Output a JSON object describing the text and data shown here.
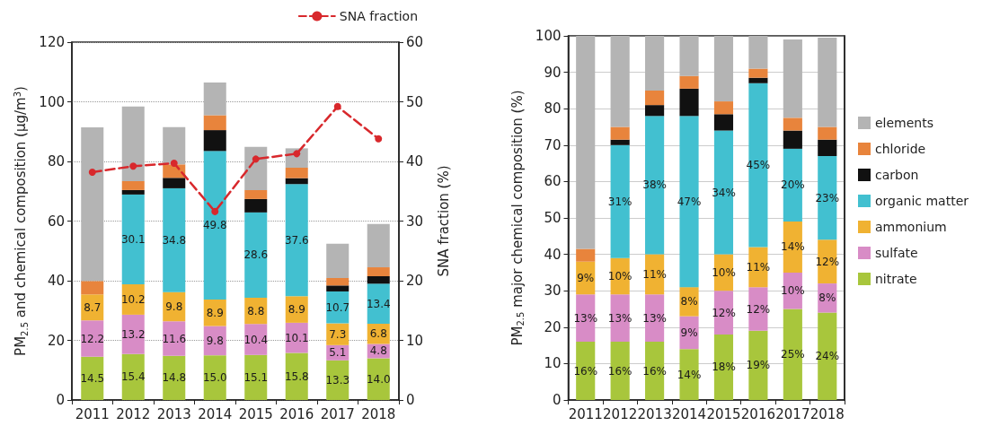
{
  "chart_data": [
    {
      "type": "bar",
      "ylabel": "PM$_{2.5}$ and chemical composition (μg/m$^{3}$)",
      "y2label": "SNA fraction (%)",
      "categories": [
        "2011",
        "2012",
        "2013",
        "2014",
        "2015",
        "2016",
        "2017",
        "2018"
      ],
      "stacked": true,
      "ylim": [
        0,
        120
      ],
      "yticks": [
        0,
        20,
        40,
        60,
        80,
        100,
        120
      ],
      "y2lim": [
        0,
        60
      ],
      "y2ticks": [
        0,
        10,
        20,
        30,
        40,
        50,
        60
      ],
      "grid": "y",
      "legend": "top right",
      "series": [
        {
          "color": "#a8c63c",
          "values": [
            14.5,
            15.4,
            14.8,
            15.0,
            15.1,
            15.8,
            13.3,
            14.0
          ],
          "value_labels": [
            "14.5",
            "15.4",
            "14.8",
            "15.0",
            "15.1",
            "15.8",
            "13.3",
            "14.0"
          ]
        },
        {
          "color": "#d88cc6",
          "values": [
            12.2,
            13.2,
            11.6,
            9.8,
            10.4,
            10.1,
            5.1,
            4.8
          ],
          "value_labels": [
            "12.2",
            "13.2",
            "11.6",
            "9.8",
            "10.4",
            "10.1",
            "5.1",
            "4.8"
          ]
        },
        {
          "color": "#f0b232",
          "values": [
            8.7,
            10.2,
            9.8,
            8.9,
            8.8,
            8.9,
            7.3,
            6.8
          ],
          "value_labels": [
            "8.7",
            "10.2",
            "9.8",
            "8.9",
            "8.8",
            "8.9",
            "7.3",
            "6.8"
          ]
        },
        {
          "color": "#42c0d0",
          "values": [
            null,
            30.1,
            34.8,
            49.8,
            28.6,
            37.6,
            10.7,
            13.4
          ],
          "value_labels": [
            null,
            "30.1",
            "34.8",
            "49.8",
            "28.6",
            "37.6",
            "10.7",
            "13.4"
          ]
        },
        {
          "color": "#111111",
          "values": [
            null,
            1.5,
            3.5,
            7.0,
            4.5,
            2.0,
            2.0,
            2.5
          ]
        },
        {
          "color": "#e8843c",
          "values": [
            4.5,
            3.0,
            4.5,
            5.0,
            3.0,
            3.5,
            2.5,
            3.0
          ]
        },
        {
          "color": "#b4b4b4",
          "values": [
            51.5,
            25.0,
            12.5,
            11.0,
            14.5,
            6.5,
            11.5,
            14.5
          ]
        },
        {
          "name": "SNA fraction",
          "type": "line",
          "axis": "y2",
          "color": "#d8282c",
          "marker": "circle",
          "line_style": "dashed",
          "values": [
            38.2,
            39.2,
            39.7,
            31.6,
            40.4,
            41.3,
            49.2,
            43.8
          ]
        }
      ]
    },
    {
      "type": "bar",
      "ylabel": "PM$_{2.5}$ major chemical composition (%)",
      "categories": [
        "2011",
        "2012",
        "2013",
        "2014",
        "2015",
        "2016",
        "2017",
        "2018"
      ],
      "stacked": true,
      "ylim": [
        0,
        100
      ],
      "yticks": [
        0,
        10,
        20,
        30,
        40,
        50,
        60,
        70,
        80,
        90,
        100
      ],
      "grid": "y",
      "legend": "right",
      "series": [
        {
          "name": "nitrate",
          "color": "#a8c63c",
          "values": [
            16,
            16,
            16,
            14,
            18,
            19,
            25,
            24
          ],
          "value_labels": [
            "16%",
            "16%",
            "16%",
            "14%",
            "18%",
            "19%",
            "25%",
            "24%"
          ]
        },
        {
          "name": "sulfate",
          "color": "#d88cc6",
          "values": [
            13,
            13,
            13,
            9,
            12,
            12,
            10,
            8
          ],
          "value_labels": [
            "13%",
            "13%",
            "13%",
            "9%",
            "12%",
            "12%",
            "10%",
            "8%"
          ]
        },
        {
          "name": "ammonium",
          "color": "#f0b232",
          "values": [
            9,
            10,
            11,
            8,
            10,
            11,
            14,
            12
          ],
          "value_labels": [
            "9%",
            "10%",
            "11%",
            "8%",
            "10%",
            "11%",
            "14%",
            "12%"
          ]
        },
        {
          "name": "organic matter",
          "color": "#42c0d0",
          "values": [
            null,
            31,
            38,
            47,
            34,
            45,
            20,
            23
          ],
          "value_labels": [
            null,
            "31%",
            "38%",
            "47%",
            "34%",
            "45%",
            "20%",
            "23%"
          ]
        },
        {
          "name": "carbon",
          "color": "#111111",
          "values": [
            null,
            1.5,
            3,
            7.5,
            4.5,
            1.5,
            5,
            4.5
          ]
        },
        {
          "name": "chloride",
          "color": "#e8843c",
          "values": [
            3.5,
            3.5,
            4,
            3.5,
            3.5,
            2.5,
            3.5,
            3.5
          ]
        },
        {
          "name": "elements",
          "color": "#b4b4b4",
          "values": [
            58.5,
            25,
            15,
            11,
            18,
            9,
            21.5,
            24.5
          ]
        }
      ]
    }
  ]
}
